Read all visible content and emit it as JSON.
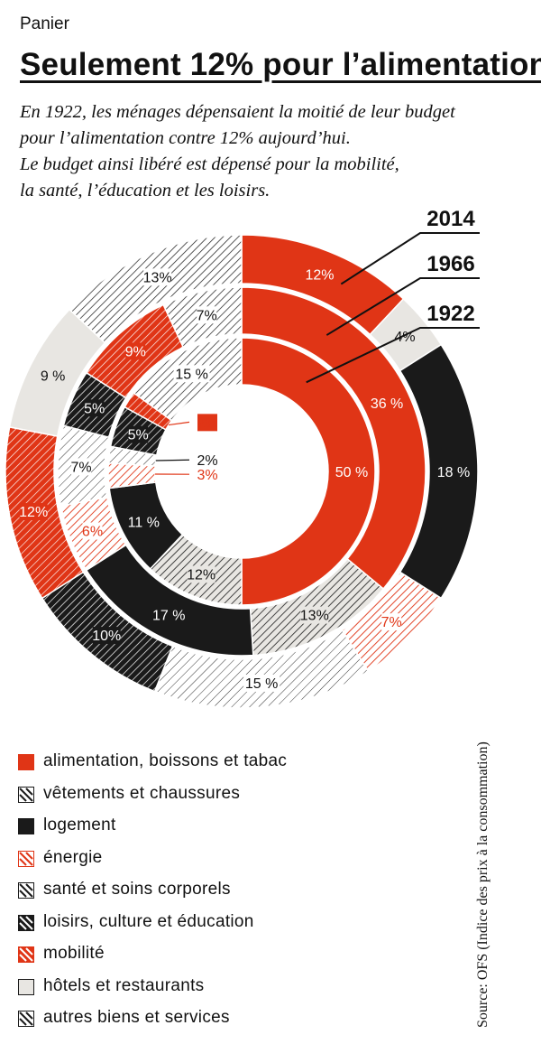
{
  "header": {
    "kicker": "Panier",
    "title": "Seulement 12% pour l’alimentation",
    "subtitle_lines": [
      "En 1922, les ménages dépensaient la moitié de leur budget",
      "pour l’alimentation contre 12% aujourd’hui.",
      "Le budget ainsi libéré est dépensé pour la mobilité,",
      "la santé, l’éducation et les loisirs."
    ]
  },
  "source": "Source: OFS (Indice des prix à la consommation)",
  "chart_data": {
    "type": "pie",
    "variant": "nested-donut",
    "unit": "%",
    "categories": [
      {
        "name": "alimentation, boissons et tabac",
        "color": "#e03516",
        "pattern": "solid"
      },
      {
        "name": "vêtements et chaussures",
        "color": "#1a1a1a",
        "pattern": "diagonal-light"
      },
      {
        "name": "logement",
        "color": "#1a1a1a",
        "pattern": "solid"
      },
      {
        "name": "énergie",
        "color": "#e03516",
        "pattern": "diagonal-red"
      },
      {
        "name": "santé et soins corporels",
        "color": "#1a1a1a",
        "pattern": "diagonal-faint"
      },
      {
        "name": "loisirs, culture et éducation",
        "color": "#1a1a1a",
        "pattern": "diagonal-dark"
      },
      {
        "name": "mobilité",
        "color": "#e03516",
        "pattern": "diagonal-red-dark"
      },
      {
        "name": "hôtels et restaurants",
        "color": "#e8e6e2",
        "pattern": "solid-light"
      },
      {
        "name": "autres biens et services",
        "color": "#1a1a1a",
        "pattern": "diagonal-outline"
      }
    ],
    "rings": [
      {
        "label": "1922",
        "values": [
          {
            "category": "alimentation, boissons et tabac",
            "value": 50,
            "label": "50 %"
          },
          {
            "category": "vêtements et chaussures",
            "value": 12,
            "label": "12%"
          },
          {
            "category": "logement",
            "value": 11,
            "label": "11 %"
          },
          {
            "category": "énergie",
            "value": 3,
            "label": "3%"
          },
          {
            "category": "santé et soins corporels",
            "value": 2,
            "label": "2%"
          },
          {
            "category": "loisirs, culture et éducation",
            "value": 5,
            "label": "5%"
          },
          {
            "category": "mobilité",
            "value": 2,
            "label": "2%"
          },
          {
            "category": "autres biens et services",
            "value": 15,
            "label": "15 %"
          }
        ]
      },
      {
        "label": "1966",
        "values": [
          {
            "category": "alimentation, boissons et tabac",
            "value": 36,
            "label": "36 %"
          },
          {
            "category": "vêtements et chaussures",
            "value": 13,
            "label": "13%"
          },
          {
            "category": "logement",
            "value": 17,
            "label": "17 %"
          },
          {
            "category": "énergie",
            "value": 6,
            "label": "6%"
          },
          {
            "category": "santé et soins corporels",
            "value": 7,
            "label": "7%"
          },
          {
            "category": "loisirs, culture et éducation",
            "value": 5,
            "label": "5%"
          },
          {
            "category": "mobilité",
            "value": 9,
            "label": "9%"
          },
          {
            "category": "autres biens et services",
            "value": 7,
            "label": "7%"
          }
        ]
      },
      {
        "label": "2014",
        "values": [
          {
            "category": "alimentation, boissons et tabac",
            "value": 12,
            "label": "12%"
          },
          {
            "category": "hôtels et restaurants",
            "value": 4,
            "label": "4%"
          },
          {
            "category": "logement",
            "value": 18,
            "label": "18 %"
          },
          {
            "category": "énergie",
            "value": 7,
            "label": "7%"
          },
          {
            "category": "santé et soins corporels",
            "value": 15,
            "label": "15 %"
          },
          {
            "category": "loisirs, culture et éducation",
            "value": 10,
            "label": "10%"
          },
          {
            "category": "mobilité",
            "value": 12,
            "label": "12%"
          },
          {
            "category": "hôtels et restaurants",
            "value": 9,
            "label": "9 %"
          },
          {
            "category": "autres biens et services",
            "value": 13,
            "label": "13%"
          }
        ]
      }
    ]
  }
}
